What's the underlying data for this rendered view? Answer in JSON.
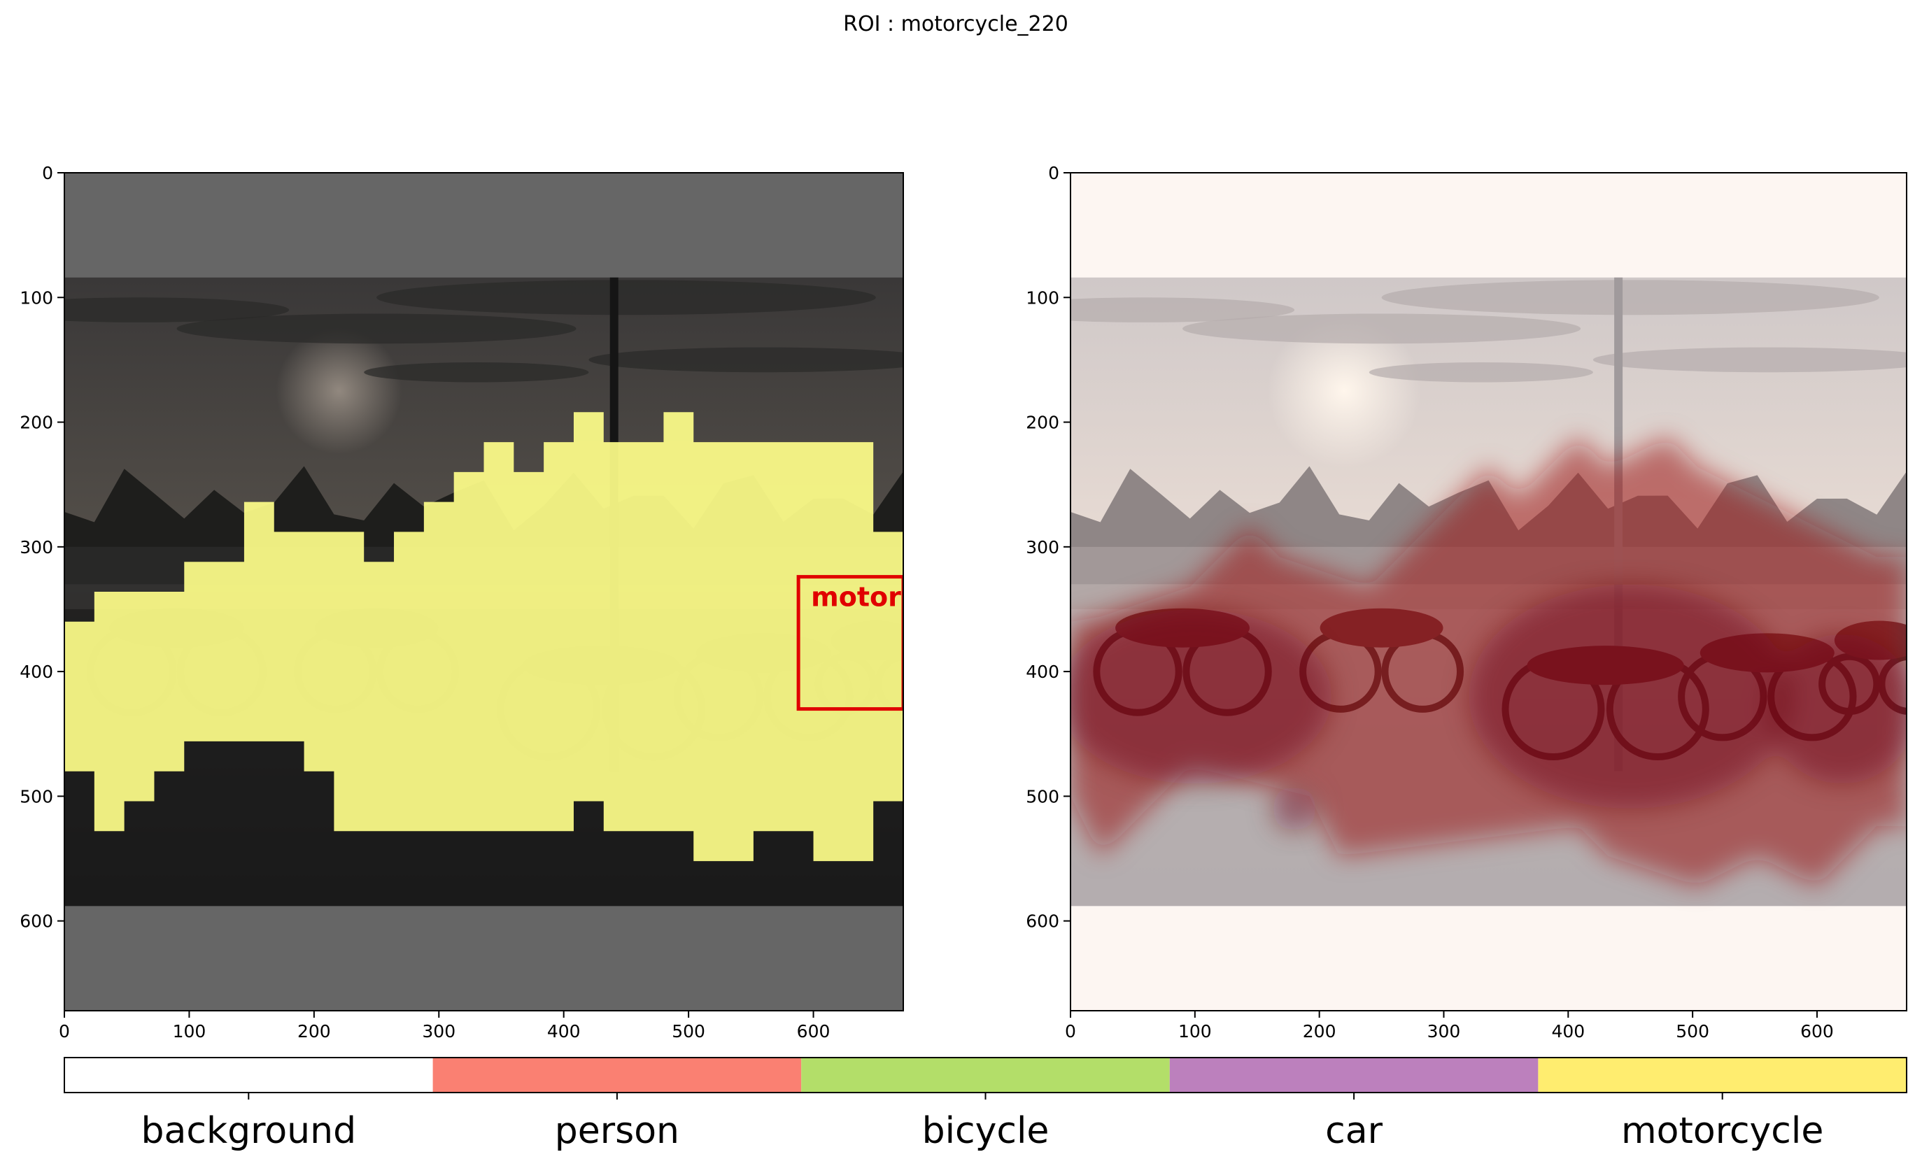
{
  "suptitle": "ROI : motorcycle_220",
  "chart_data": [
    {
      "type": "heatmap",
      "panel": "left",
      "description_of_content": "segmentation mask overlay on photo",
      "xlim": [
        0,
        672
      ],
      "ylim": [
        672,
        0
      ],
      "xticks": [
        0,
        100,
        200,
        300,
        400,
        500,
        600
      ],
      "yticks": [
        0,
        100,
        200,
        300,
        400,
        500,
        600
      ],
      "photo_extent_y": [
        84,
        588
      ],
      "mask_class": "motorcycle",
      "mask_color": "#ffff8a",
      "mask_top_profile": [
        [
          0,
          360
        ],
        [
          24,
          336
        ],
        [
          96,
          312
        ],
        [
          144,
          264
        ],
        [
          168,
          288
        ],
        [
          240,
          312
        ],
        [
          264,
          288
        ],
        [
          288,
          264
        ],
        [
          312,
          240
        ],
        [
          336,
          216
        ],
        [
          360,
          240
        ],
        [
          384,
          216
        ],
        [
          408,
          192
        ],
        [
          432,
          216
        ],
        [
          480,
          192
        ],
        [
          504,
          216
        ],
        [
          648,
          288
        ],
        [
          672,
          288
        ]
      ],
      "mask_bottom_profile": [
        [
          0,
          480
        ],
        [
          24,
          528
        ],
        [
          48,
          504
        ],
        [
          72,
          480
        ],
        [
          96,
          456
        ],
        [
          192,
          480
        ],
        [
          216,
          528
        ],
        [
          408,
          504
        ],
        [
          432,
          528
        ],
        [
          504,
          552
        ],
        [
          552,
          528
        ],
        [
          600,
          552
        ],
        [
          648,
          504
        ],
        [
          672,
          504
        ]
      ],
      "roi_box": {
        "label": "motor",
        "x0": 588,
        "y0": 324,
        "x1": 672,
        "y1": 430,
        "color": "#e00000"
      }
    },
    {
      "type": "heatmap",
      "panel": "right",
      "xlim": [
        0,
        672
      ],
      "ylim": [
        672,
        0
      ],
      "xticks": [
        0,
        100,
        200,
        300,
        400,
        500,
        600
      ],
      "yticks": [
        0,
        100,
        200,
        300,
        400,
        500,
        600
      ],
      "photo_extent_y": [
        84,
        588
      ],
      "colormap": "Reds",
      "heat_color": "#9a0c18"
    }
  ],
  "colorbar": {
    "labels": [
      "background",
      "person",
      "bicycle",
      "car",
      "motorcycle"
    ],
    "colors": [
      "#ffffff",
      "#fa8072",
      "#b3de69",
      "#bc80bd",
      "#ffed6f"
    ]
  }
}
